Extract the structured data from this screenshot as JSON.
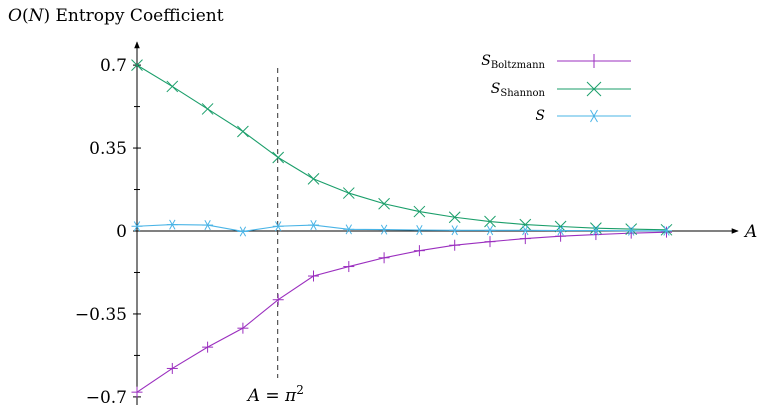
{
  "chart_data": {
    "type": "line",
    "ylabel": "O(N) Entropy Coefficient",
    "xlabel": "A",
    "ylim": [
      -0.7,
      0.7
    ],
    "yticks": [
      {
        "value": 0.7,
        "label": "0.7"
      },
      {
        "value": 0.35,
        "label": "0.35"
      },
      {
        "value": 0,
        "label": "0"
      },
      {
        "value": -0.35,
        "label": "−0.35"
      },
      {
        "value": -0.7,
        "label": "−0.7"
      }
    ],
    "yminor_ticks": [
      0.525,
      0.175,
      -0.175,
      -0.525
    ],
    "x": [
      0,
      1,
      2,
      3,
      4,
      5,
      6,
      7,
      8,
      9,
      10,
      11,
      12,
      13,
      14,
      15
    ],
    "vline": {
      "x": 4,
      "label": "A = π²"
    },
    "legend_position": "top-right",
    "series": [
      {
        "name": "S_Boltzmann",
        "marker": "plus",
        "color": "#9b2fbf",
        "values": [
          -0.68,
          -0.58,
          -0.49,
          -0.41,
          -0.29,
          -0.19,
          -0.15,
          -0.113,
          -0.083,
          -0.06,
          -0.045,
          -0.032,
          -0.022,
          -0.015,
          -0.009,
          -0.005
        ]
      },
      {
        "name": "S_Shannon",
        "marker": "x",
        "color": "#1a9e6a",
        "values": [
          0.7,
          0.61,
          0.515,
          0.42,
          0.31,
          0.22,
          0.16,
          0.115,
          0.082,
          0.058,
          0.04,
          0.027,
          0.019,
          0.012,
          0.008,
          0.005
        ]
      },
      {
        "name": "S",
        "marker": "asterisk",
        "color": "#4ab4e6",
        "values": [
          0.02,
          0.027,
          0.025,
          -0.002,
          0.02,
          0.025,
          0.007,
          0.006,
          0.004,
          0.003,
          0.003,
          0.003,
          0.002,
          0.002,
          0.001,
          0.001
        ]
      }
    ]
  }
}
